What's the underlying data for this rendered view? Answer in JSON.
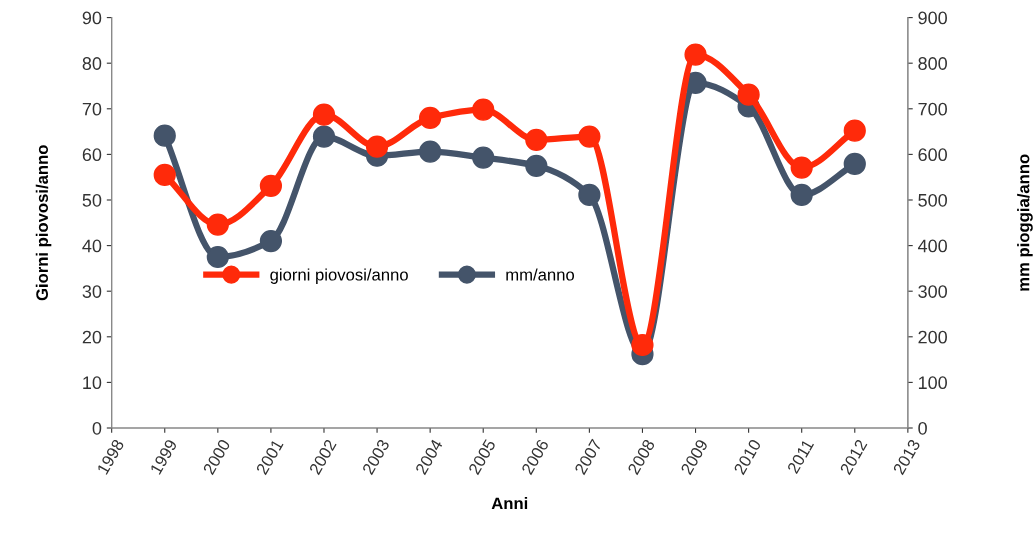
{
  "chart_data": {
    "type": "line",
    "xlabel": "Anni",
    "ylabel": "Giorni piovosi/anno",
    "y2label": "mm pioggia/anno",
    "x": [
      1999,
      2000,
      2001,
      2002,
      2003,
      2004,
      2005,
      2006,
      2007,
      2008,
      2009,
      2010,
      2011,
      2012
    ],
    "series": [
      {
        "name": "giorni piovosi/anno",
        "color": "#ff2a0a",
        "values": [
          55.5,
          44.6,
          53.1,
          68.7,
          61.7,
          68,
          69.8,
          63.2,
          63.9,
          18.2,
          81.9,
          73.1,
          57.1,
          65.2
        ]
      },
      {
        "name": "mm/anno",
        "color": "#44546a",
        "axis": "y2",
        "values": [
          641,
          375,
          410,
          639,
          597,
          606,
          593,
          575,
          511,
          162,
          757,
          705,
          511,
          579
        ]
      }
    ],
    "xlim": [
      1998,
      2013
    ],
    "xticks": [
      1998,
      1999,
      2000,
      2001,
      2002,
      2003,
      2004,
      2005,
      2006,
      2007,
      2008,
      2009,
      2010,
      2011,
      2012,
      2013
    ],
    "ylim": [
      0,
      90
    ],
    "yticks": [
      0,
      10,
      20,
      30,
      40,
      50,
      60,
      70,
      80,
      90
    ],
    "y2lim": [
      0,
      900
    ],
    "y2ticks": [
      0,
      100,
      200,
      300,
      400,
      500,
      600,
      700,
      800,
      900
    ],
    "marker": "circle",
    "line_style": "solid",
    "legend": "left",
    "grid": false
  }
}
